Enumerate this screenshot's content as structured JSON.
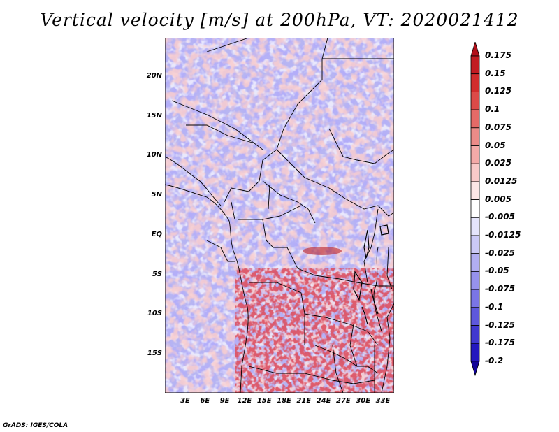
{
  "title": "Vertical velocity [m/s] at 200hPa, VT: 2020021412",
  "map": {
    "lat_labels": [
      "20N",
      "15N",
      "10N",
      "5N",
      "EQ",
      "5S",
      "10S",
      "15S"
    ],
    "lon_labels": [
      "3E",
      "6E",
      "9E",
      "12E",
      "15E",
      "18E",
      "21E",
      "24E",
      "27E",
      "30E",
      "33E"
    ],
    "colors": {
      "strong_red": "#b3101a",
      "light_red": "#f7a8a8",
      "white": "#ffffff",
      "light_blue": "#b6b4f2",
      "mid_blue": "#7f7ae6",
      "boundary": "#000000"
    }
  },
  "colorbar": {
    "levels": [
      "0.175",
      "0.15",
      "0.125",
      "0.1",
      "0.075",
      "0.05",
      "0.025",
      "0.0125",
      "0.005",
      "-0.005",
      "-0.0125",
      "-0.025",
      "-0.05",
      "-0.075",
      "-0.1",
      "-0.125",
      "-0.175",
      "-0.2"
    ],
    "colors": [
      "#b2101a",
      "#c21c22",
      "#d12c2c",
      "#dc4a48",
      "#e56a67",
      "#ec8b88",
      "#f3aaa8",
      "#f8cac9",
      "#fce6e6",
      "#ffffff",
      "#e5e4fb",
      "#cbc9f6",
      "#b1aef1",
      "#9692ec",
      "#7a75e5",
      "#5e58dc",
      "#4139cf",
      "#2418bf",
      "#120499"
    ]
  },
  "footer": "GrADS: IGES/COLA"
}
